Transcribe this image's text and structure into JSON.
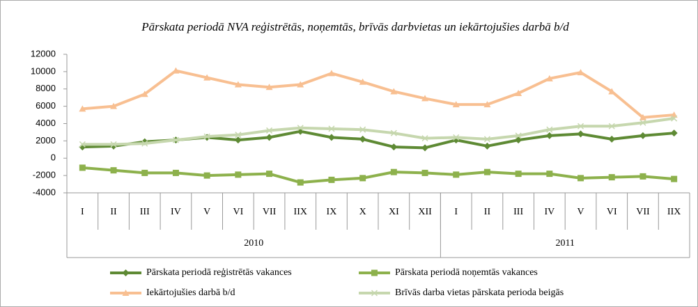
{
  "chart_data": {
    "type": "line",
    "title": "Pārskata periodā NVA reģistrētās, noņemtās, brīvās darbvietas un iekārtojušies darbā b/d",
    "categories": [
      "I",
      "II",
      "III",
      "IV",
      "V",
      "VI",
      "VII",
      "IIX",
      "IX",
      "X",
      "XI",
      "XII",
      "I",
      "II",
      "III",
      "IV",
      "V",
      "VI",
      "VII",
      "IIX"
    ],
    "groups": [
      {
        "name": "2010",
        "size": 12
      },
      {
        "name": "2011",
        "size": 8
      }
    ],
    "ylim": [
      -4000,
      12000
    ],
    "yticks": [
      -4000,
      -2000,
      0,
      2000,
      4000,
      6000,
      8000,
      10000,
      12000
    ],
    "grid": false,
    "series": [
      {
        "name": "Pārskata periodā reģistrētās vakances",
        "color": "#5e8a34",
        "marker": "diamond",
        "values": [
          1300,
          1400,
          1900,
          2100,
          2400,
          2100,
          2400,
          3100,
          2400,
          2200,
          1300,
          1200,
          2100,
          1400,
          2100,
          2600,
          2800,
          2200,
          2600,
          2900
        ]
      },
      {
        "name": "Pārskata periodā noņemtās vakances",
        "color": "#8db14c",
        "marker": "square",
        "values": [
          -1100,
          -1400,
          -1700,
          -1700,
          -2000,
          -1900,
          -1800,
          -2800,
          -2500,
          -2300,
          -1600,
          -1700,
          -1900,
          -1600,
          -1800,
          -1800,
          -2300,
          -2200,
          -2100,
          -2400
        ]
      },
      {
        "name": "Iekārtojušies darbā b/d",
        "color": "#f8bf91",
        "marker": "triangle",
        "values": [
          5700,
          6000,
          7400,
          10100,
          9300,
          8500,
          8200,
          8500,
          9800,
          8800,
          7700,
          6900,
          6200,
          6200,
          7500,
          9200,
          9900,
          7700,
          4700,
          5000
        ]
      },
      {
        "name": "Brīvās darba vietas pārskata perioda beigās",
        "color": "#c6d7ae",
        "marker": "x",
        "values": [
          1600,
          1600,
          1700,
          2100,
          2500,
          2700,
          3200,
          3500,
          3400,
          3300,
          2900,
          2300,
          2400,
          2200,
          2600,
          3300,
          3700,
          3700,
          4100,
          4600
        ]
      }
    ]
  }
}
